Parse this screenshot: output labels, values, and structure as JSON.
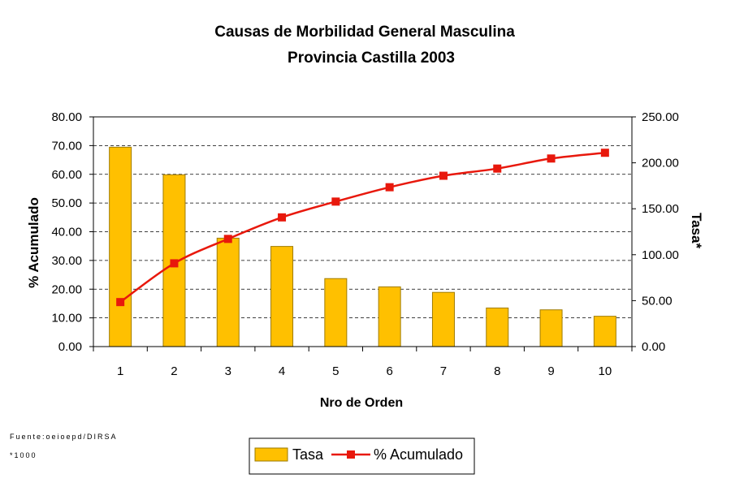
{
  "chart_data": {
    "type": "bar",
    "title": "Causas de Morbilidad General Masculina",
    "subtitle": "Provincia Castilla 2003",
    "xlabel": "Nro de Orden",
    "ylabel_left": "% Acumulado",
    "ylabel_right": "Tasa*",
    "categories": [
      "1",
      "2",
      "3",
      "4",
      "5",
      "6",
      "7",
      "8",
      "9",
      "10"
    ],
    "ylim_left": [
      0,
      80
    ],
    "ylim_right": [
      0,
      250
    ],
    "yticks_left": [
      "0.00",
      "10.00",
      "20.00",
      "30.00",
      "40.00",
      "50.00",
      "60.00",
      "70.00",
      "80.00"
    ],
    "yticks_right": [
      "0.00",
      "50.00",
      "100.00",
      "150.00",
      "200.00",
      "250.00"
    ],
    "grid": true,
    "legend_position": "bottom",
    "series": [
      {
        "name": "Tasa",
        "type": "bar",
        "axis": "right",
        "color": "#FFC000",
        "values": [
          217,
          187,
          118,
          109,
          74,
          65,
          59,
          42,
          40,
          33
        ]
      },
      {
        "name": "% Acumulado",
        "type": "line",
        "axis": "left",
        "color": "#E8180C",
        "values": [
          15.5,
          29.0,
          37.5,
          45.0,
          50.5,
          55.5,
          59.5,
          62.0,
          65.5,
          67.5
        ]
      }
    ]
  },
  "footnotes": {
    "source": "Fuente:oeioepd/DIRSA",
    "scale_note": "*1000"
  }
}
